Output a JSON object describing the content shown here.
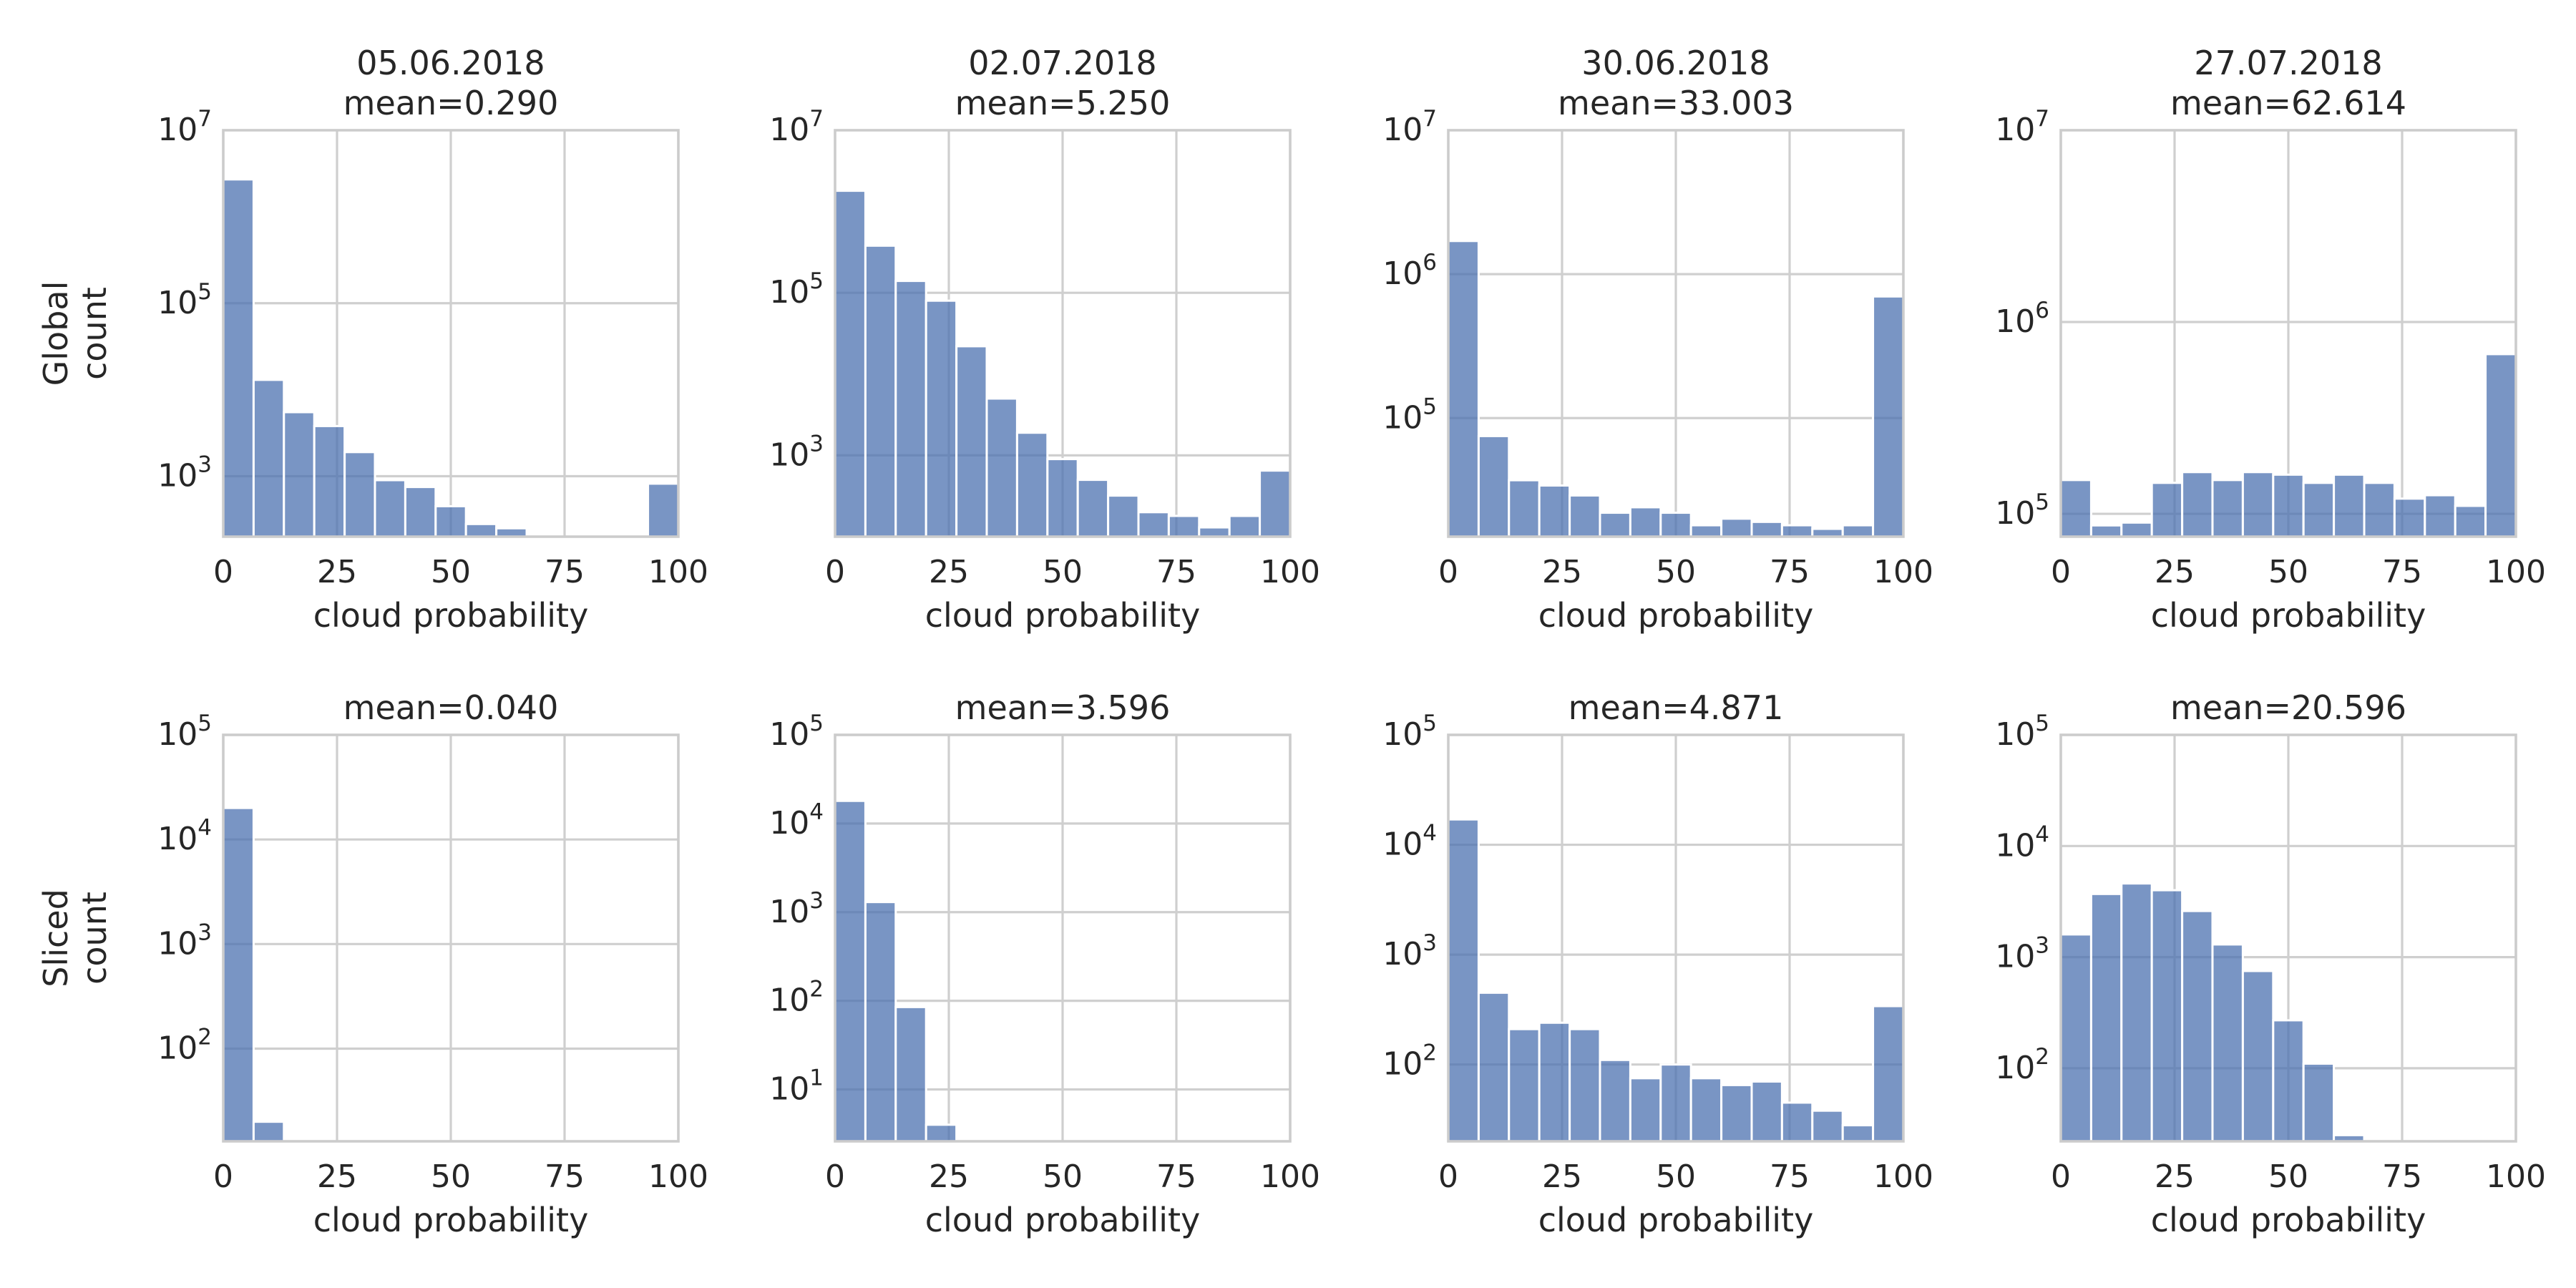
{
  "figure": {
    "row_labels": [
      "Global\ncount",
      "Sliced\ncount"
    ]
  },
  "colors": {
    "bar": "#4c72b0",
    "grid": "#cfcfcf",
    "frame": "#cccccc",
    "text": "#262626"
  },
  "chart_data": [
    {
      "type": "bar",
      "row": 0,
      "col": 0,
      "title": "05.06.2018\nmean=0.290",
      "xlabel": "cloud probability",
      "ylabel": "",
      "x_ticks": [
        0,
        25,
        50,
        75,
        100
      ],
      "xlim": [
        0,
        100
      ],
      "yscale": "log",
      "ylim": [
        200,
        10000000
      ],
      "y_ticks": [
        1000,
        100000,
        10000000
      ],
      "y_tick_labels": [
        {
          "base": "10",
          "exp": "3"
        },
        {
          "base": "10",
          "exp": "5"
        },
        {
          "base": "10",
          "exp": "7"
        }
      ],
      "bin_edges": [
        0,
        6.67,
        13.33,
        20,
        26.67,
        33.33,
        40,
        46.67,
        53.33,
        60,
        66.67,
        73.33,
        80,
        86.67,
        93.33,
        100
      ],
      "values": [
        2700000,
        13000,
        5500,
        3800,
        1900,
        900,
        750,
        450,
        280,
        250,
        160,
        100,
        115,
        115,
        820
      ],
      "grid": true
    },
    {
      "type": "bar",
      "row": 0,
      "col": 1,
      "title": "02.07.2018\nmean=5.250",
      "xlabel": "cloud probability",
      "ylabel": "",
      "x_ticks": [
        0,
        25,
        50,
        75,
        100
      ],
      "xlim": [
        0,
        100
      ],
      "yscale": "log",
      "ylim": [
        100,
        10000000
      ],
      "y_ticks": [
        1000,
        100000,
        10000000
      ],
      "y_tick_labels": [
        {
          "base": "10",
          "exp": "3"
        },
        {
          "base": "10",
          "exp": "5"
        },
        {
          "base": "10",
          "exp": "7"
        }
      ],
      "bin_edges": [
        0,
        6.67,
        13.33,
        20,
        26.67,
        33.33,
        40,
        46.67,
        53.33,
        60,
        66.67,
        73.33,
        80,
        86.67,
        93.33,
        100
      ],
      "values": [
        1800000,
        380000,
        140000,
        80000,
        22000,
        5000,
        1900,
        900,
        500,
        320,
        200,
        180,
        130,
        180,
        650
      ],
      "grid": true
    },
    {
      "type": "bar",
      "row": 0,
      "col": 2,
      "title": "30.06.2018\nmean=33.003",
      "xlabel": "cloud probability",
      "ylabel": "",
      "x_ticks": [
        0,
        25,
        50,
        75,
        100
      ],
      "xlim": [
        0,
        100
      ],
      "yscale": "log",
      "ylim": [
        15000,
        10000000
      ],
      "y_ticks": [
        100000,
        1000000,
        10000000
      ],
      "y_tick_labels": [
        {
          "base": "10",
          "exp": "5"
        },
        {
          "base": "10",
          "exp": "6"
        },
        {
          "base": "10",
          "exp": "7"
        }
      ],
      "bin_edges": [
        0,
        6.67,
        13.33,
        20,
        26.67,
        33.33,
        40,
        46.67,
        53.33,
        60,
        66.67,
        73.33,
        80,
        86.67,
        93.33,
        100
      ],
      "values": [
        1700000,
        75000,
        37000,
        34000,
        29000,
        22000,
        24000,
        22000,
        18000,
        20000,
        19000,
        18000,
        17000,
        18000,
        700000
      ],
      "grid": true
    },
    {
      "type": "bar",
      "row": 0,
      "col": 3,
      "title": "27.07.2018\nmean=62.614",
      "xlabel": "cloud probability",
      "ylabel": "",
      "x_ticks": [
        0,
        25,
        50,
        75,
        100
      ],
      "xlim": [
        0,
        100
      ],
      "yscale": "log",
      "ylim": [
        76000,
        10000000
      ],
      "y_ticks": [
        100000,
        1000000,
        10000000
      ],
      "y_tick_labels": [
        {
          "base": "10",
          "exp": "5"
        },
        {
          "base": "10",
          "exp": "6"
        },
        {
          "base": "10",
          "exp": "7"
        }
      ],
      "bin_edges": [
        0,
        6.67,
        13.33,
        20,
        26.67,
        33.33,
        40,
        46.67,
        53.33,
        60,
        66.67,
        73.33,
        80,
        86.67,
        93.33,
        100
      ],
      "values": [
        150000,
        87000,
        90000,
        145000,
        165000,
        150000,
        165000,
        160000,
        145000,
        160000,
        145000,
        120000,
        125000,
        110000,
        680000
      ],
      "grid": true
    },
    {
      "type": "bar",
      "row": 1,
      "col": 0,
      "title": "mean=0.040",
      "xlabel": "cloud probability",
      "ylabel": "",
      "x_ticks": [
        0,
        25,
        50,
        75,
        100
      ],
      "xlim": [
        0,
        100
      ],
      "yscale": "log",
      "ylim": [
        13,
        100000
      ],
      "y_ticks": [
        100,
        1000,
        10000,
        100000
      ],
      "y_tick_labels": [
        {
          "base": "10",
          "exp": "2"
        },
        {
          "base": "10",
          "exp": "3"
        },
        {
          "base": "10",
          "exp": "4"
        },
        {
          "base": "10",
          "exp": "5"
        }
      ],
      "bin_edges": [
        0,
        6.67,
        13.33
      ],
      "values": [
        20000,
        20
      ],
      "grid": true
    },
    {
      "type": "bar",
      "row": 1,
      "col": 1,
      "title": "mean=3.596",
      "xlabel": "cloud probability",
      "ylabel": "",
      "x_ticks": [
        0,
        25,
        50,
        75,
        100
      ],
      "xlim": [
        0,
        100
      ],
      "yscale": "log",
      "ylim": [
        2.6,
        100000
      ],
      "y_ticks": [
        10,
        100,
        1000,
        10000,
        100000
      ],
      "y_tick_labels": [
        {
          "base": "10",
          "exp": "1"
        },
        {
          "base": "10",
          "exp": "2"
        },
        {
          "base": "10",
          "exp": "3"
        },
        {
          "base": "10",
          "exp": "4"
        },
        {
          "base": "10",
          "exp": "5"
        }
      ],
      "bin_edges": [
        0,
        6.67,
        13.33,
        20,
        26.67
      ],
      "values": [
        18000,
        1300,
        85,
        4
      ],
      "grid": true
    },
    {
      "type": "bar",
      "row": 1,
      "col": 2,
      "title": "mean=4.871",
      "xlabel": "cloud probability",
      "ylabel": "",
      "x_ticks": [
        0,
        25,
        50,
        75,
        100
      ],
      "xlim": [
        0,
        100
      ],
      "yscale": "log",
      "ylim": [
        20,
        100000
      ],
      "y_ticks": [
        100,
        1000,
        10000,
        100000
      ],
      "y_tick_labels": [
        {
          "base": "10",
          "exp": "2"
        },
        {
          "base": "10",
          "exp": "3"
        },
        {
          "base": "10",
          "exp": "4"
        },
        {
          "base": "10",
          "exp": "5"
        }
      ],
      "bin_edges": [
        0,
        6.67,
        13.33,
        20,
        26.67,
        33.33,
        40,
        46.67,
        53.33,
        60,
        66.67,
        73.33,
        80,
        86.67,
        93.33,
        100
      ],
      "values": [
        17000,
        450,
        210,
        240,
        210,
        110,
        75,
        100,
        75,
        65,
        70,
        45,
        38,
        28,
        340
      ],
      "grid": true
    },
    {
      "type": "bar",
      "row": 1,
      "col": 3,
      "title": "mean=20.596",
      "xlabel": "cloud probability",
      "ylabel": "",
      "x_ticks": [
        0,
        25,
        50,
        75,
        100
      ],
      "xlim": [
        0,
        100
      ],
      "yscale": "log",
      "ylim": [
        22,
        100000
      ],
      "y_ticks": [
        100,
        1000,
        10000,
        100000
      ],
      "y_tick_labels": [
        {
          "base": "10",
          "exp": "2"
        },
        {
          "base": "10",
          "exp": "3"
        },
        {
          "base": "10",
          "exp": "4"
        },
        {
          "base": "10",
          "exp": "5"
        }
      ],
      "bin_edges": [
        0,
        6.67,
        13.33,
        20,
        26.67,
        33.33,
        40,
        46.67,
        53.33,
        60,
        66.67
      ],
      "values": [
        1600,
        3700,
        4600,
        4000,
        2600,
        1300,
        750,
        270,
        110,
        25
      ],
      "grid": true
    }
  ]
}
